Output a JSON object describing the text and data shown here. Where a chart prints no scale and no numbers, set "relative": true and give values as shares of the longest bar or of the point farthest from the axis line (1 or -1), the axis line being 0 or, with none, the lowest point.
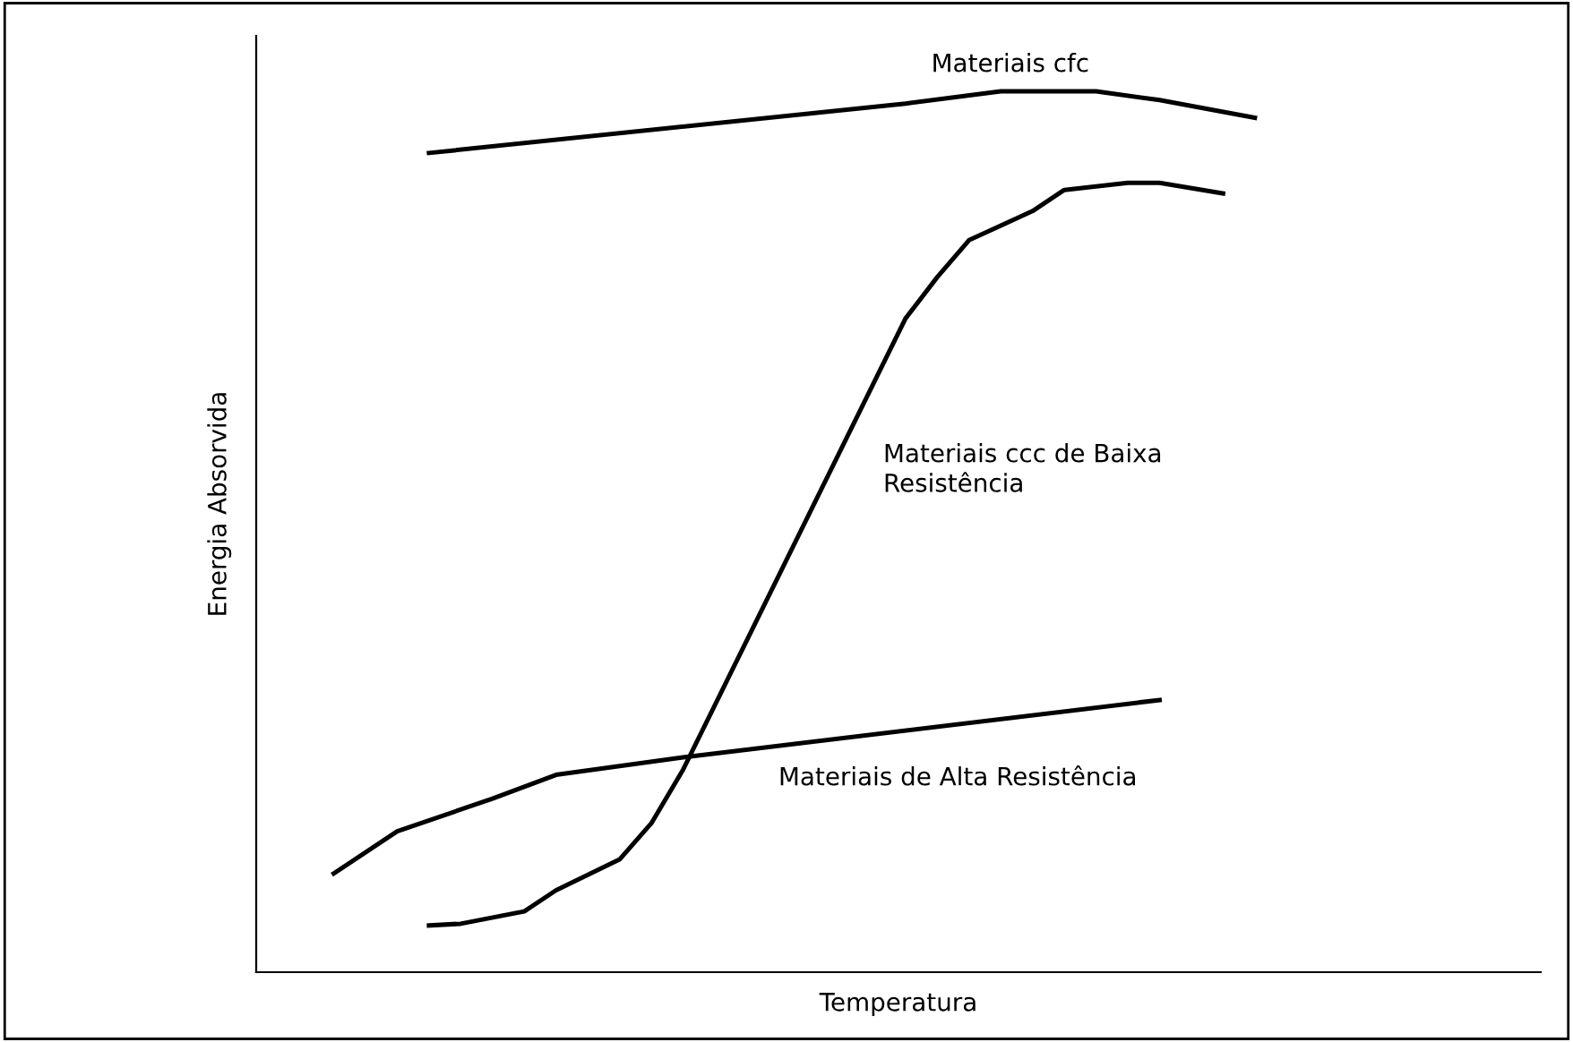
{
  "chart_data": {
    "type": "line",
    "relative": true,
    "xlabel": "Temperatura",
    "ylabel": "Energia Absorvida",
    "categories": [
      null,
      null,
      null,
      null,
      null,
      null,
      null,
      null,
      null,
      null,
      null,
      null,
      null,
      null,
      null,
      null,
      null,
      null,
      null,
      null,
      null,
      null,
      null,
      null,
      null,
      null,
      null,
      null,
      null,
      null
    ],
    "series": [
      {
        "name": "Materiais cfc",
        "color": "#000000",
        "values": [
          null,
          null,
          null,
          0.93,
          null,
          null,
          null,
          null,
          null,
          null,
          null,
          null,
          null,
          null,
          null,
          null,
          null,
          null,
          0.986,
          null,
          null,
          1,
          null,
          null,
          1,
          null,
          0.99,
          null,
          null,
          0.97
        ]
      },
      {
        "name": "Materiais ccc de Baixa\nResistência",
        "color": "#000000",
        "values": [
          null,
          null,
          null,
          0.053,
          0.055,
          null,
          0.069,
          0.093,
          null,
          0.128,
          0.169,
          0.23,
          null,
          null,
          null,
          null,
          null,
          null,
          0.742,
          0.789,
          0.831,
          null,
          0.864,
          0.888,
          null,
          0.896,
          0.896,
          null,
          0.884,
          null
        ]
      },
      {
        "name": "Materiais de Alta Resistência",
        "color": "#000000",
        "values": [
          0.112,
          null,
          0.16,
          null,
          null,
          0.197,
          null,
          0.224,
          null,
          null,
          null,
          0.244,
          null,
          null,
          null,
          null,
          null,
          null,
          null,
          null,
          null,
          null,
          null,
          null,
          null,
          null,
          0.309,
          null,
          null,
          null
        ]
      }
    ],
    "legend": false,
    "grid": false,
    "tick_labels": false,
    "line_style": "solid",
    "marker": "none"
  }
}
